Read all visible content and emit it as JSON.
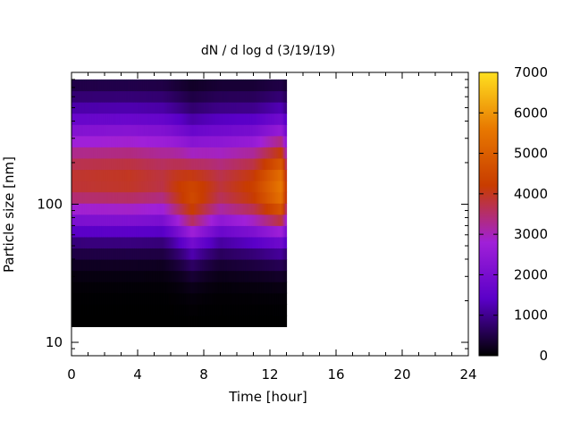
{
  "chart_data": {
    "type": "heatmap",
    "title": "dN / d log d (3/19/19)",
    "xlabel": "Time [hour]",
    "ylabel": "Particle size [nm]",
    "xlim": [
      0,
      24
    ],
    "x_ticks": [
      0,
      4,
      8,
      12,
      16,
      20,
      24
    ],
    "y_scale": "log",
    "ylim": [
      8,
      900
    ],
    "y_ticks": [
      10,
      100
    ],
    "colorbar": {
      "min": 0,
      "max": 7000,
      "ticks": [
        0,
        1000,
        2000,
        3000,
        4000,
        5000,
        6000,
        7000
      ],
      "palette": [
        "#000000",
        "#5a00c8",
        "#a020d8",
        "#c83c00",
        "#e87800",
        "#ffe020"
      ]
    },
    "data_extent": {
      "time_start": 0,
      "time_end": 13.0,
      "size_min": 13,
      "size_max": 800
    },
    "profiles": [
      {
        "time": 0.0,
        "peak_size_nm": 150,
        "peak_value": 3900
      },
      {
        "time": 3.5,
        "peak_size_nm": 150,
        "peak_value": 4000
      },
      {
        "time": 5.5,
        "peak_size_nm": 150,
        "peak_value": 3800
      },
      {
        "time": 7.3,
        "peak_size_nm": 115,
        "peak_value": 4500
      },
      {
        "time": 9.0,
        "peak_size_nm": 135,
        "peak_value": 3800
      },
      {
        "time": 11.0,
        "peak_size_nm": 130,
        "peak_value": 4300
      },
      {
        "time": 12.7,
        "peak_size_nm": 130,
        "peak_value": 5600
      },
      {
        "time": 13.0,
        "peak_size_nm": 130,
        "peak_value": 4000
      }
    ]
  }
}
